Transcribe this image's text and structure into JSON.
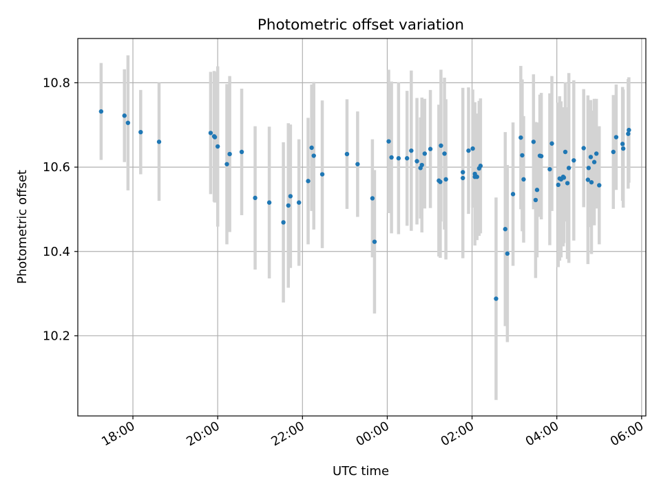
{
  "chart_data": {
    "type": "scatter",
    "title": "Photometric offset variation",
    "xlabel": "UTC time",
    "ylabel": "Photometric offset",
    "x_tick_labels": [
      "18:00",
      "20:00",
      "22:00",
      "00:00",
      "02:00",
      "04:00",
      "06:00"
    ],
    "y_tick_labels": [
      "10.2",
      "10.4",
      "10.6",
      "10.8"
    ],
    "y_ticks": [
      10.2,
      10.4,
      10.6,
      10.8
    ],
    "xlim_hours": [
      16.7,
      30.1
    ],
    "ylim": [
      10.01,
      10.905
    ],
    "grid": true,
    "colors": {
      "point": "#1f77b4",
      "errorbar": "#d3d3d3",
      "grid": "#b0b0b0",
      "axes": "#000000"
    },
    "series": [
      {
        "x": [
          "17:15",
          "17:48",
          "17:53",
          "18:11",
          "18:37",
          "19:50",
          "19:55",
          "19:56",
          "20:00",
          "20:13",
          "20:17",
          "20:34",
          "20:53",
          "21:13",
          "21:33",
          "21:40",
          "21:43",
          "21:55",
          "22:08",
          "22:13",
          "22:16",
          "22:28",
          "23:03",
          "23:18",
          "23:39",
          "23:42",
          "00:02",
          "00:06",
          "00:16",
          "00:28",
          "00:34",
          "00:42",
          "00:47",
          "00:49",
          "00:53",
          "01:01",
          "01:13",
          "01:15",
          "01:16",
          "01:21",
          "01:23",
          "01:47",
          "01:47",
          "01:55",
          "02:01",
          "02:04",
          "02:04",
          "02:07",
          "02:10",
          "02:12",
          "02:34",
          "02:47",
          "02:50",
          "02:58",
          "03:09",
          "03:11",
          "03:13",
          "03:27",
          "03:30",
          "03:32",
          "03:36",
          "03:38",
          "03:50",
          "03:53",
          "04:02",
          "04:04",
          "04:06",
          "04:09",
          "04:10",
          "04:12",
          "04:15",
          "04:17",
          "04:24",
          "04:38",
          "04:44",
          "04:45",
          "04:48",
          "04:49",
          "04:53",
          "04:56",
          "05:00",
          "05:20",
          "05:24",
          "05:33",
          "05:34",
          "05:41",
          "05:42"
        ],
        "y": [
          10.732,
          10.722,
          10.705,
          10.683,
          10.66,
          10.681,
          10.673,
          10.671,
          10.649,
          10.607,
          10.631,
          10.636,
          10.527,
          10.516,
          10.469,
          10.509,
          10.531,
          10.516,
          10.567,
          10.646,
          10.627,
          10.583,
          10.631,
          10.607,
          10.526,
          10.423,
          10.661,
          10.623,
          10.621,
          10.621,
          10.639,
          10.614,
          10.598,
          10.605,
          10.632,
          10.643,
          10.568,
          10.565,
          10.651,
          10.632,
          10.571,
          10.574,
          10.588,
          10.639,
          10.644,
          10.577,
          10.584,
          10.577,
          10.597,
          10.603,
          10.288,
          10.453,
          10.395,
          10.536,
          10.67,
          10.628,
          10.571,
          10.66,
          10.522,
          10.546,
          10.627,
          10.626,
          10.595,
          10.656,
          10.558,
          10.573,
          10.571,
          10.577,
          10.575,
          10.636,
          10.562,
          10.598,
          10.616,
          10.645,
          10.57,
          10.598,
          10.624,
          10.564,
          10.612,
          10.632,
          10.557,
          10.636,
          10.671,
          10.655,
          10.644,
          10.679,
          10.688
        ],
        "err": [
          0.115,
          0.11,
          0.16,
          0.1,
          0.14,
          0.145,
          0.155,
          0.155,
          0.19,
          0.19,
          0.185,
          0.15,
          0.17,
          0.18,
          0.19,
          0.195,
          0.17,
          0.15,
          0.15,
          0.15,
          0.175,
          0.175,
          0.13,
          0.125,
          0.14,
          0.17,
          0.17,
          0.18,
          0.18,
          0.16,
          0.19,
          0.15,
          0.12,
          0.16,
          0.13,
          0.14,
          0.18,
          0.18,
          0.18,
          0.18,
          0.19,
          0.19,
          0.2,
          0.15,
          0.14,
          0.14,
          0.17,
          0.15,
          0.16,
          0.16,
          0.24,
          0.23,
          0.21,
          0.17,
          0.17,
          0.18,
          0.15,
          0.16,
          0.185,
          0.16,
          0.145,
          0.15,
          0.18,
          0.16,
          0.195,
          0.195,
          0.185,
          0.165,
          0.155,
          0.165,
          0.18,
          0.225,
          0.19,
          0.14,
          0.2,
          0.14,
          0.135,
          0.17,
          0.15,
          0.13,
          0.14,
          0.135,
          0.125,
          0.135,
          0.14,
          0.13,
          0.125
        ]
      }
    ]
  }
}
